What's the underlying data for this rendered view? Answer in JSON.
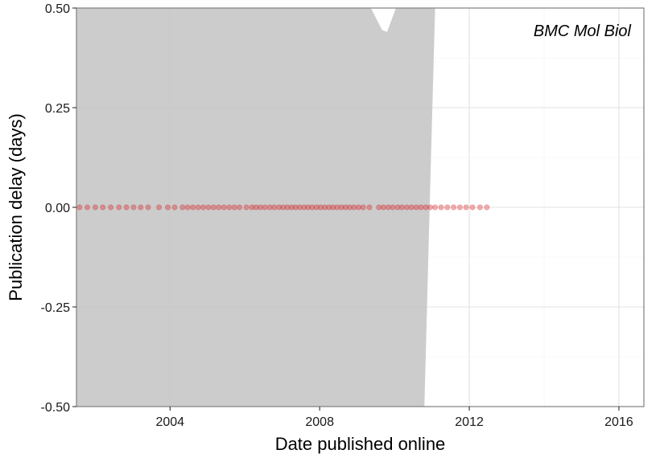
{
  "chart_data": {
    "type": "scatter",
    "title": "",
    "panel_label": "BMC Mol Biol",
    "xlabel": "Date published online",
    "ylabel": "Publication delay (days)",
    "x_axis_type": "date",
    "xlim": [
      "2001-07-01",
      "2016-09-01"
    ],
    "ylim": [
      -0.5,
      0.5
    ],
    "x_ticks": [
      "2004",
      "2008",
      "2012",
      "2016"
    ],
    "x_tick_values": [
      "2004-01-01",
      "2008-01-01",
      "2012-01-01",
      "2016-01-01"
    ],
    "y_ticks": [
      "-0.50",
      "-0.25",
      "0.00",
      "0.25",
      "0.50"
    ],
    "y_tick_values": [
      -0.5,
      -0.25,
      0.0,
      0.25,
      0.5
    ],
    "grid": true,
    "point_color": "#d7191c",
    "band_color": "#cccccc",
    "series": [
      {
        "values": [
          {
            "x": "2001-08-01",
            "y": 0
          },
          {
            "x": "2001-10-15",
            "y": 0
          },
          {
            "x": "2002-01-01",
            "y": 0
          },
          {
            "x": "2002-03-15",
            "y": 0
          },
          {
            "x": "2002-06-01",
            "y": 0
          },
          {
            "x": "2002-08-20",
            "y": 0
          },
          {
            "x": "2002-11-01",
            "y": 0
          },
          {
            "x": "2003-01-10",
            "y": 0
          },
          {
            "x": "2003-03-20",
            "y": 0
          },
          {
            "x": "2003-06-01",
            "y": 0
          },
          {
            "x": "2003-09-15",
            "y": 0
          },
          {
            "x": "2003-12-10",
            "y": 0
          },
          {
            "x": "2004-02-15",
            "y": 0
          },
          {
            "x": "2004-05-01",
            "y": 0
          },
          {
            "x": "2004-06-20",
            "y": 0
          },
          {
            "x": "2004-08-10",
            "y": 0
          },
          {
            "x": "2004-10-01",
            "y": 0
          },
          {
            "x": "2004-11-20",
            "y": 0
          },
          {
            "x": "2005-01-10",
            "y": 0
          },
          {
            "x": "2005-03-01",
            "y": 0
          },
          {
            "x": "2005-04-20",
            "y": 0
          },
          {
            "x": "2005-06-10",
            "y": 0
          },
          {
            "x": "2005-08-01",
            "y": 0
          },
          {
            "x": "2005-09-20",
            "y": 0
          },
          {
            "x": "2005-11-10",
            "y": 0
          },
          {
            "x": "2006-01-15",
            "y": 0
          },
          {
            "x": "2006-03-10",
            "y": 0
          },
          {
            "x": "2006-04-20",
            "y": 0
          },
          {
            "x": "2006-06-01",
            "y": 0
          },
          {
            "x": "2006-07-15",
            "y": 0
          },
          {
            "x": "2006-09-01",
            "y": 0
          },
          {
            "x": "2006-10-15",
            "y": 0
          },
          {
            "x": "2006-12-01",
            "y": 0
          },
          {
            "x": "2007-01-10",
            "y": 0
          },
          {
            "x": "2007-02-20",
            "y": 0
          },
          {
            "x": "2007-04-01",
            "y": 0
          },
          {
            "x": "2007-05-10",
            "y": 0
          },
          {
            "x": "2007-06-20",
            "y": 0
          },
          {
            "x": "2007-08-01",
            "y": 0
          },
          {
            "x": "2007-09-10",
            "y": 0
          },
          {
            "x": "2007-10-20",
            "y": 0
          },
          {
            "x": "2007-12-01",
            "y": 0
          },
          {
            "x": "2008-01-10",
            "y": 0
          },
          {
            "x": "2008-02-20",
            "y": 0
          },
          {
            "x": "2008-04-01",
            "y": 0
          },
          {
            "x": "2008-05-10",
            "y": 0
          },
          {
            "x": "2008-06-20",
            "y": 0
          },
          {
            "x": "2008-08-01",
            "y": 0
          },
          {
            "x": "2008-09-10",
            "y": 0
          },
          {
            "x": "2008-10-20",
            "y": 0
          },
          {
            "x": "2008-12-01",
            "y": 0
          },
          {
            "x": "2009-01-15",
            "y": 0
          },
          {
            "x": "2009-03-01",
            "y": 0
          },
          {
            "x": "2009-05-01",
            "y": 0
          },
          {
            "x": "2009-08-01",
            "y": 0
          },
          {
            "x": "2009-09-15",
            "y": 0
          },
          {
            "x": "2009-11-01",
            "y": 0
          },
          {
            "x": "2009-12-15",
            "y": 0
          },
          {
            "x": "2010-02-01",
            "y": 0
          },
          {
            "x": "2010-03-15",
            "y": 0
          },
          {
            "x": "2010-05-01",
            "y": 0
          },
          {
            "x": "2010-06-15",
            "y": 0
          },
          {
            "x": "2010-08-01",
            "y": 0
          },
          {
            "x": "2010-09-15",
            "y": 0
          },
          {
            "x": "2010-11-01",
            "y": 0
          },
          {
            "x": "2010-12-15",
            "y": 0
          },
          {
            "x": "2011-02-01",
            "y": 0
          },
          {
            "x": "2011-04-01",
            "y": 0
          },
          {
            "x": "2011-06-01",
            "y": 0
          },
          {
            "x": "2011-08-01",
            "y": 0
          },
          {
            "x": "2011-10-01",
            "y": 0
          },
          {
            "x": "2011-12-01",
            "y": 0
          },
          {
            "x": "2012-02-01",
            "y": 0
          },
          {
            "x": "2012-04-15",
            "y": 0
          },
          {
            "x": "2012-06-20",
            "y": 0
          }
        ]
      }
    ],
    "confidence_band": {
      "description": "",
      "upper": [
        {
          "x": "2001-07-01",
          "y": 0.5
        },
        {
          "x": "2009-05-15",
          "y": 0.5
        },
        {
          "x": "2009-09-01",
          "y": 0.445
        },
        {
          "x": "2009-10-20",
          "y": 0.44
        },
        {
          "x": "2010-01-15",
          "y": 0.5
        },
        {
          "x": "2011-02-01",
          "y": 0.5
        }
      ],
      "right_edge": [
        {
          "x": "2011-02-01",
          "y": 0.5
        },
        {
          "x": "2010-12-10",
          "y": 0.0
        },
        {
          "x": "2010-10-20",
          "y": -0.5
        }
      ]
    }
  }
}
